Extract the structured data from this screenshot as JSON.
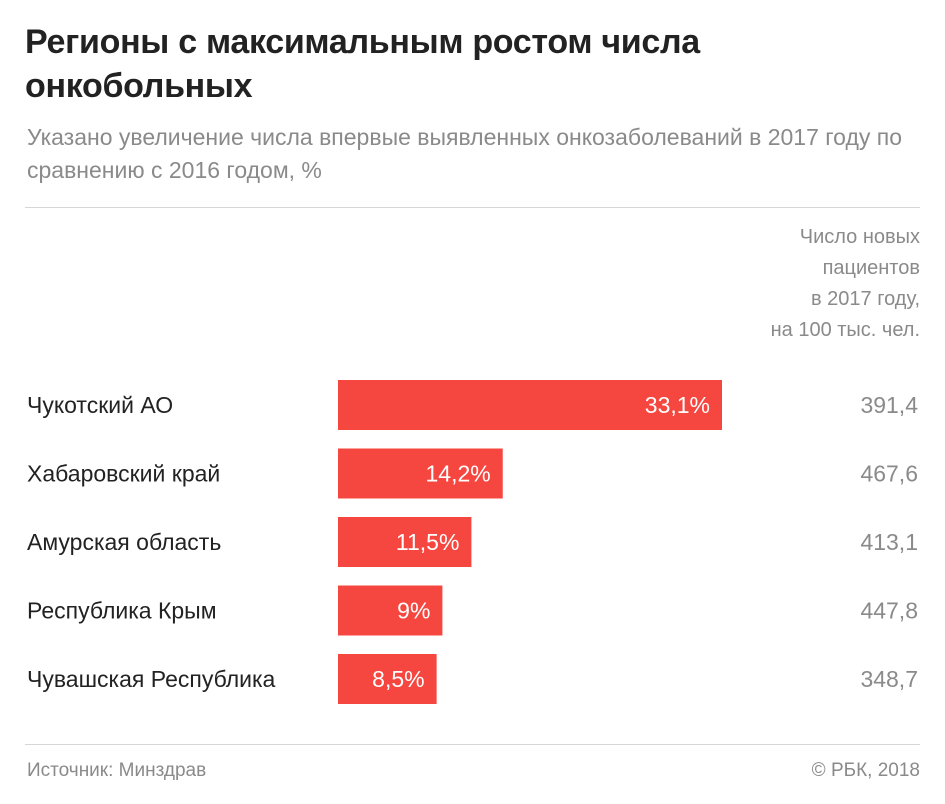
{
  "title": "Регионы с максимальным ростом числа онкобольных",
  "subtitle": "Указано увеличение числа впервые выявленных онкозаболеваний в 2017 году по сравнению с 2016 годом, %",
  "column_header": [
    "Число новых",
    "пациентов",
    "в 2017 году,",
    "на 100 тыс. чел."
  ],
  "footer": {
    "source": "Источник: Минздрав",
    "copyright": "© РБК, 2018"
  },
  "colors": {
    "bar": "#f5473f",
    "text": "#222222",
    "muted": "#8a8a8a",
    "bar_label": "#ffffff"
  },
  "chart_data": {
    "type": "bar",
    "orientation": "horizontal",
    "title": "Регионы с максимальным ростом числа онкобольных",
    "xlabel": "",
    "ylabel": "",
    "xlim": [
      0,
      33.1
    ],
    "grid": false,
    "categories": [
      "Чукотский АО",
      "Хабаровский край",
      "Амурская область",
      "Республика Крым",
      "Чувашская Республика"
    ],
    "values": [
      33.1,
      14.2,
      11.5,
      9,
      8.5
    ],
    "value_labels": [
      "33,1%",
      "14,2%",
      "11,5%",
      "9%",
      "8,5%"
    ],
    "secondary_column": {
      "name": "Число новых пациентов в 2017 году, на 100 тыс. чел.",
      "values": [
        391.4,
        467.6,
        413.1,
        447.8,
        348.7
      ],
      "labels": [
        "391,4",
        "467,6",
        "413,1",
        "447,8",
        "348,7"
      ]
    }
  }
}
